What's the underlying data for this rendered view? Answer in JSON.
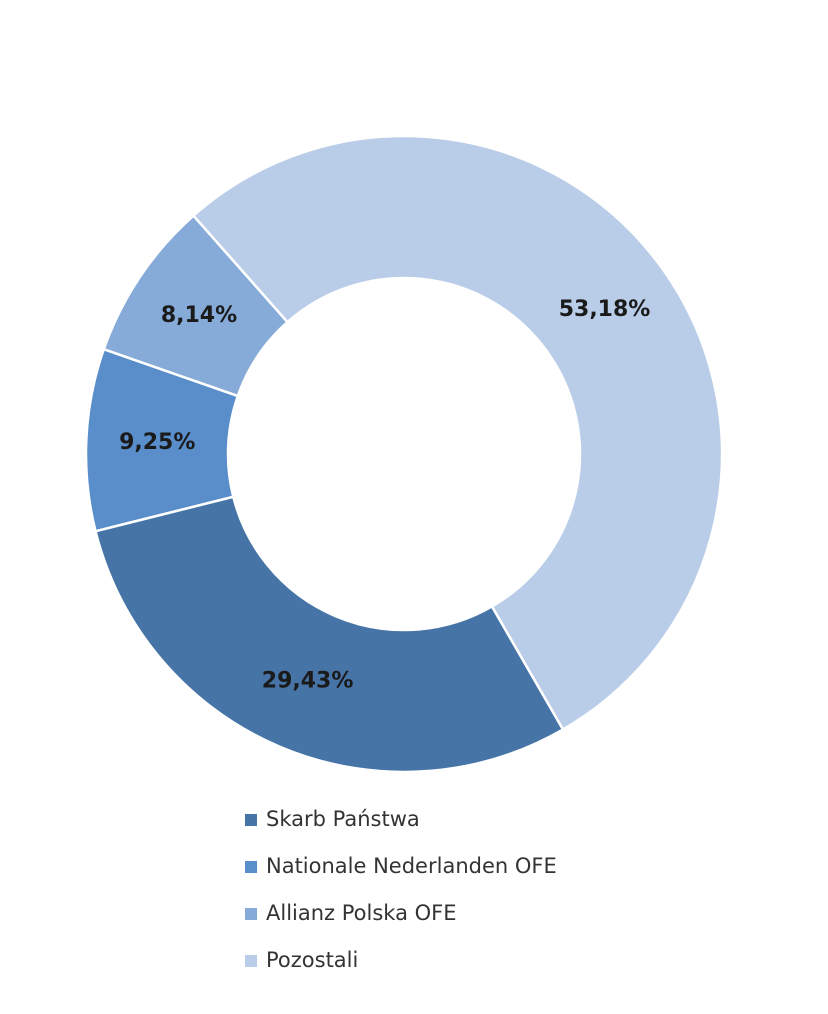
{
  "chart_data": {
    "type": "donut",
    "categories": [
      "Skarb Państwa",
      "Nationale Nederlanden OFE",
      "Allianz Polska OFE",
      "Pozostali"
    ],
    "values": [
      29.43,
      9.25,
      8.14,
      53.18
    ],
    "value_labels": [
      "29,43%",
      "9,25%",
      "8,14%",
      "53,18%"
    ],
    "colors": [
      "#4674a6",
      "#5a8ecb",
      "#86abd9",
      "#b9cde8"
    ],
    "legend": "bottom"
  }
}
